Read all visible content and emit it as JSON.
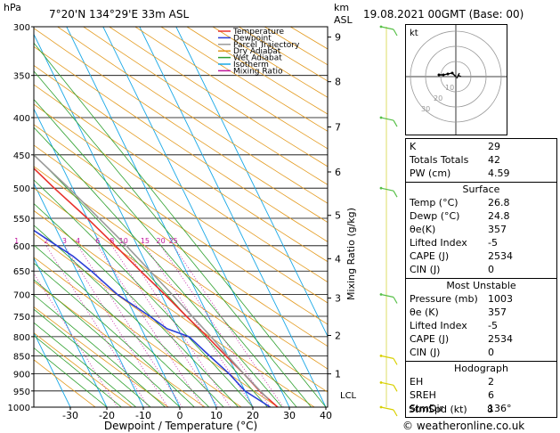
{
  "header": {
    "hpa_label": "hPa",
    "location": "7°20'N  134°29'E  33m  ASL",
    "km_label": "km",
    "asl_label": "ASL",
    "datetime": "19.08.2021  00GMT  (Base: 00)"
  },
  "footer": {
    "credit": "© weatheronline.co.uk"
  },
  "hodograph": {
    "unit": "kt",
    "ring_labels": [
      "10",
      "20",
      "30"
    ]
  },
  "indices": {
    "rows": [
      {
        "k": "K",
        "v": "29"
      },
      {
        "k": "Totals Totals",
        "v": "42"
      },
      {
        "k": "PW (cm)",
        "v": "4.59"
      }
    ]
  },
  "surface": {
    "title": "Surface",
    "rows": [
      {
        "k": "Temp (°C)",
        "v": "26.8"
      },
      {
        "k": "Dewp (°C)",
        "v": "24.8"
      },
      {
        "k": "θe(K)",
        "v": "357"
      },
      {
        "k": "Lifted Index",
        "v": "-5"
      },
      {
        "k": "CAPE (J)",
        "v": "2534"
      },
      {
        "k": "CIN (J)",
        "v": "0"
      }
    ]
  },
  "unstable": {
    "title": "Most Unstable",
    "rows": [
      {
        "k": "Pressure (mb)",
        "v": "1003"
      },
      {
        "k": "θe (K)",
        "v": "357"
      },
      {
        "k": "Lifted Index",
        "v": "-5"
      },
      {
        "k": "CAPE (J)",
        "v": "2534"
      },
      {
        "k": "CIN (J)",
        "v": "0"
      }
    ]
  },
  "hodo_table": {
    "title": "Hodograph",
    "rows": [
      {
        "k": "EH",
        "v": "2"
      },
      {
        "k": "SREH",
        "v": "6"
      },
      {
        "k": "StmDir",
        "v": "136°"
      },
      {
        "k": "StmSpd (kt)",
        "v": "8"
      }
    ]
  },
  "chart_data": {
    "type": "line",
    "xlabel": "Dewpoint / Temperature (°C)",
    "ylabel": "hPa",
    "right_label": "Mixing Ratio (g/kg)",
    "xlim": [
      -40,
      40
    ],
    "ylim": [
      1000,
      300
    ],
    "y_scale": "log",
    "skew": true,
    "x_ticks": [
      -30,
      -20,
      -10,
      0,
      10,
      20,
      30,
      40
    ],
    "pressure_ticks": [
      300,
      350,
      400,
      450,
      500,
      550,
      600,
      650,
      700,
      750,
      800,
      850,
      900,
      950,
      1000
    ],
    "km_ticks": [
      {
        "label": "9",
        "p": 310
      },
      {
        "label": "8",
        "p": 357
      },
      {
        "label": "7",
        "p": 412
      },
      {
        "label": "6",
        "p": 475
      },
      {
        "label": "5",
        "p": 545
      },
      {
        "label": "4",
        "p": 625
      },
      {
        "label": "3",
        "p": 708
      },
      {
        "label": "2",
        "p": 797
      },
      {
        "label": "1",
        "p": 900
      }
    ],
    "lcl": {
      "label": "LCL",
      "p": 975
    },
    "mixing_ratio_labels": [
      "1",
      "2",
      "3",
      "4",
      "6",
      "8",
      "10",
      "15",
      "20",
      "25"
    ],
    "legend": {
      "placement": "top",
      "entries": [
        {
          "name": "Temperature",
          "color": "#e8322d"
        },
        {
          "name": "Dewpoint",
          "color": "#2a3fd8"
        },
        {
          "name": "Parcel Trajectory",
          "color": "#9a9a9a"
        },
        {
          "name": "Dry Adiabat",
          "color": "#e39a1e"
        },
        {
          "name": "Wet Adiabat",
          "color": "#2ea02e"
        },
        {
          "name": "Isotherm",
          "color": "#19a8e6"
        },
        {
          "name": "Mixing Ratio",
          "color": "#c0189e"
        }
      ]
    },
    "series": [
      {
        "name": "Temperature",
        "color": "#e8322d",
        "points": [
          {
            "p": 1000,
            "t": 26.8
          },
          {
            "p": 950,
            "t": 24
          },
          {
            "p": 900,
            "t": 22
          },
          {
            "p": 850,
            "t": 19.5
          },
          {
            "p": 800,
            "t": 17
          },
          {
            "p": 750,
            "t": 14
          },
          {
            "p": 700,
            "t": 11
          },
          {
            "p": 650,
            "t": 7.5
          },
          {
            "p": 600,
            "t": 4
          },
          {
            "p": 550,
            "t": 0
          },
          {
            "p": 500,
            "t": -5
          },
          {
            "p": 450,
            "t": -10
          },
          {
            "p": 400,
            "t": -17
          },
          {
            "p": 350,
            "t": -26
          }
        ]
      },
      {
        "name": "Dewpoint",
        "color": "#2a3fd8",
        "points": [
          {
            "p": 1000,
            "t": 24.8
          },
          {
            "p": 950,
            "t": 20
          },
          {
            "p": 900,
            "t": 18
          },
          {
            "p": 850,
            "t": 15
          },
          {
            "p": 800,
            "t": 12
          },
          {
            "p": 780,
            "t": 7
          },
          {
            "p": 750,
            "t": 4
          },
          {
            "p": 700,
            "t": -2
          },
          {
            "p": 650,
            "t": -6
          },
          {
            "p": 620,
            "t": -9
          },
          {
            "p": 600,
            "t": -12
          },
          {
            "p": 580,
            "t": -15
          },
          {
            "p": 560,
            "t": -18
          },
          {
            "p": 540,
            "t": -28
          },
          {
            "p": 525,
            "t": -22
          },
          {
            "p": 510,
            "t": -30
          },
          {
            "p": 495,
            "t": -25
          },
          {
            "p": 480,
            "t": -33
          },
          {
            "p": 465,
            "t": -28
          },
          {
            "p": 450,
            "t": -38
          },
          {
            "p": 435,
            "t": -33
          },
          {
            "p": 420,
            "t": -40
          },
          {
            "p": 405,
            "t": -38
          },
          {
            "p": 395,
            "t": -48
          },
          {
            "p": 345,
            "t": -32
          },
          {
            "p": 300,
            "t": -60
          }
        ]
      },
      {
        "name": "Parcel Trajectory",
        "color": "#9a9a9a",
        "points": [
          {
            "p": 975,
            "t": 25.3
          },
          {
            "p": 900,
            "t": 22
          },
          {
            "p": 850,
            "t": 20
          },
          {
            "p": 800,
            "t": 18
          },
          {
            "p": 700,
            "t": 13
          },
          {
            "p": 600,
            "t": 7
          },
          {
            "p": 500,
            "t": -1
          },
          {
            "p": 400,
            "t": -12
          },
          {
            "p": 350,
            "t": -19
          }
        ]
      }
    ],
    "wind_barbs_p": [
      300,
      400,
      500,
      700,
      850,
      925,
      1000
    ]
  }
}
